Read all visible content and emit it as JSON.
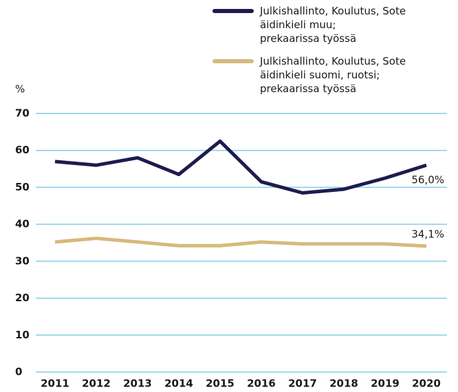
{
  "chart_data": {
    "type": "line",
    "ylabel": "%",
    "categories": [
      "2011",
      "2012",
      "2013",
      "2014",
      "2015",
      "2016",
      "2017",
      "2018",
      "2019",
      "2020"
    ],
    "series": [
      {
        "name": "Julkishallinto, Koulutus, Sote\näidinkieli muu;\nprekaarissa työssä",
        "color": "#1e1b4f",
        "values": [
          57,
          56,
          58,
          53.5,
          62.5,
          51.5,
          48.5,
          49.5,
          52.5,
          56.0
        ],
        "value_labels": [
          null,
          null,
          null,
          null,
          null,
          null,
          null,
          null,
          null,
          "56,0%"
        ]
      },
      {
        "name": "Julkishallinto, Koulutus, Sote\näidinkieli suomi, ruotsi;\nprekaarissa työssä",
        "color": "#d6b97c",
        "values": [
          35.2,
          36.2,
          35.2,
          34.2,
          34.2,
          35.2,
          34.7,
          34.7,
          34.7,
          34.1
        ],
        "value_labels": [
          null,
          null,
          null,
          null,
          null,
          null,
          null,
          null,
          null,
          "34,1%"
        ]
      }
    ],
    "ylim": [
      0,
      70
    ],
    "yticks": [
      0,
      10,
      20,
      30,
      40,
      50,
      60,
      70
    ],
    "grid": true
  }
}
